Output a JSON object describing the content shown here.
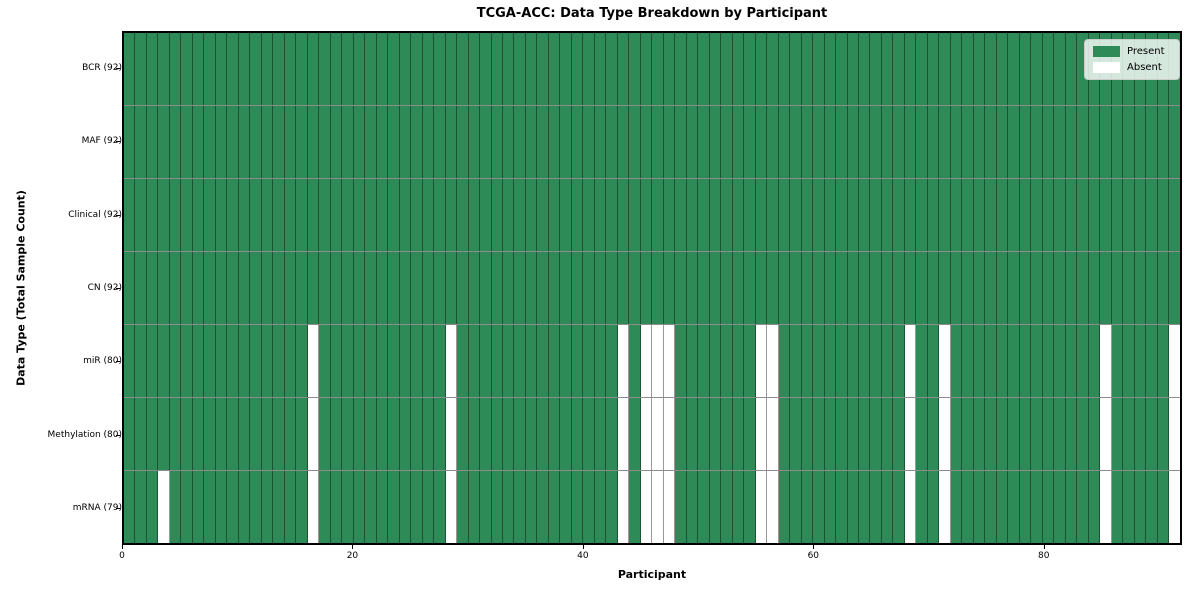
{
  "chart_data": {
    "type": "heatmap",
    "title": "TCGA-ACC: Data Type Breakdown by Participant",
    "xlabel": "Participant",
    "ylabel": "Data Type (Total Sample Count)",
    "n_participants": 92,
    "x_ticks": [
      0,
      20,
      40,
      60,
      80
    ],
    "grid": true,
    "legend_position": "upper right",
    "rows": [
      {
        "label": "BCR (92)",
        "present_count": 92,
        "absent_participants": []
      },
      {
        "label": "MAF (92)",
        "present_count": 92,
        "absent_participants": []
      },
      {
        "label": "Clinical (92)",
        "present_count": 92,
        "absent_participants": []
      },
      {
        "label": "CN (92)",
        "present_count": 92,
        "absent_participants": []
      },
      {
        "label": "miR (80)",
        "present_count": 80,
        "absent_participants": [
          16,
          28,
          43,
          45,
          46,
          47,
          55,
          56,
          68,
          71,
          85,
          91
        ]
      },
      {
        "label": "Methylation (80)",
        "present_count": 80,
        "absent_participants": [
          16,
          28,
          43,
          45,
          46,
          47,
          55,
          56,
          68,
          71,
          85,
          91
        ]
      },
      {
        "label": "mRNA (79)",
        "present_count": 79,
        "absent_participants": [
          3,
          16,
          28,
          43,
          45,
          46,
          47,
          55,
          56,
          68,
          71,
          85,
          91
        ]
      }
    ],
    "legend": [
      {
        "label": "Present",
        "color": "#2e8b57"
      },
      {
        "label": "Absent",
        "color": "#ffffff"
      }
    ],
    "colors": {
      "present": "#2e8b57",
      "absent": "#ffffff",
      "cell_edge": "rgba(0,0,0,0.4)",
      "plot_border": "#000000"
    }
  }
}
